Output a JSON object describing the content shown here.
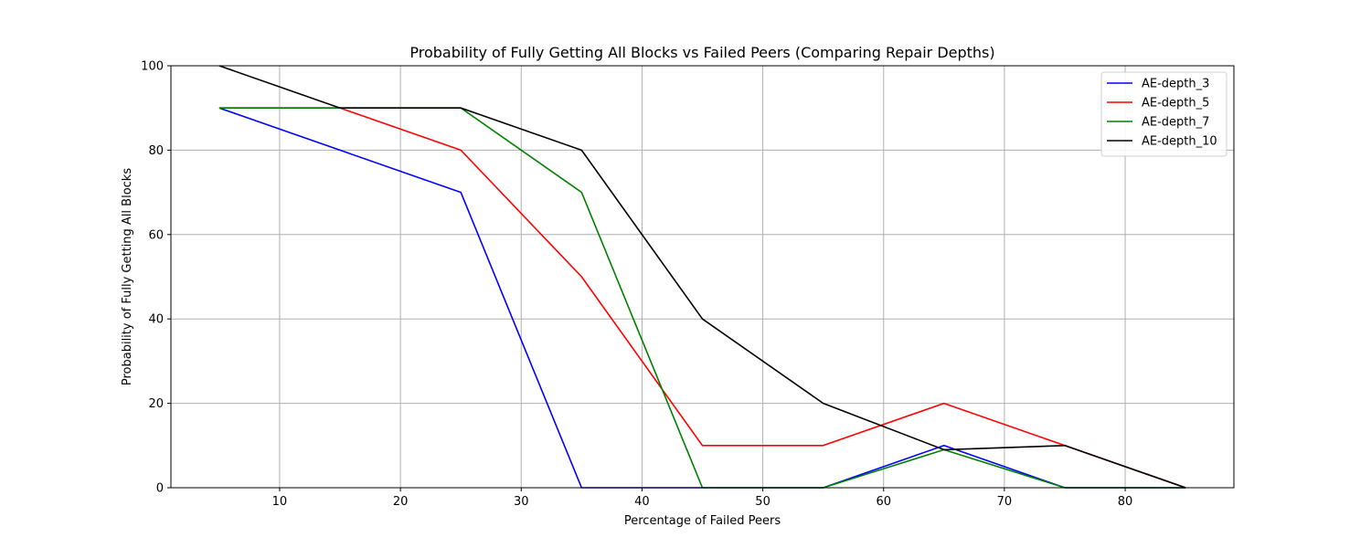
{
  "chart_data": {
    "type": "line",
    "title": "Probability of Fully Getting All Blocks vs Failed Peers (Comparing Repair Depths)",
    "xlabel": "Percentage of Failed Peers",
    "ylabel": "Probability of Fully Getting All Blocks",
    "x": [
      5,
      15,
      25,
      35,
      45,
      55,
      65,
      75,
      85
    ],
    "xlim": [
      1,
      89
    ],
    "ylim": [
      0,
      100
    ],
    "xticks": [
      10,
      20,
      30,
      40,
      50,
      60,
      70,
      80
    ],
    "yticks": [
      0,
      20,
      40,
      60,
      80,
      100
    ],
    "grid": true,
    "legend_position": "top-right",
    "series": [
      {
        "name": "AE-depth_3",
        "color": "#0000ff",
        "x": [
          5,
          15,
          25,
          35,
          45,
          55,
          65,
          75,
          85
        ],
        "values": [
          90,
          80,
          70,
          0,
          0,
          0,
          10,
          0,
          0
        ]
      },
      {
        "name": "AE-depth_5",
        "color": "#ff0000",
        "x": [
          5,
          15,
          25,
          35,
          45,
          55,
          65,
          75,
          85
        ],
        "values": [
          90,
          90,
          80,
          50,
          10,
          10,
          20,
          10,
          0
        ]
      },
      {
        "name": "AE-depth_7",
        "color": "#008000",
        "x": [
          5,
          15,
          25,
          35,
          45,
          55,
          65,
          75,
          85
        ],
        "values": [
          90,
          90,
          90,
          70,
          0,
          0,
          9,
          0,
          0
        ]
      },
      {
        "name": "AE-depth_10",
        "color": "#000000",
        "x": [
          5,
          15,
          25,
          35,
          45,
          55,
          65,
          75,
          85
        ],
        "values": [
          100,
          90,
          90,
          80,
          40,
          20,
          9,
          10,
          0
        ]
      }
    ]
  }
}
